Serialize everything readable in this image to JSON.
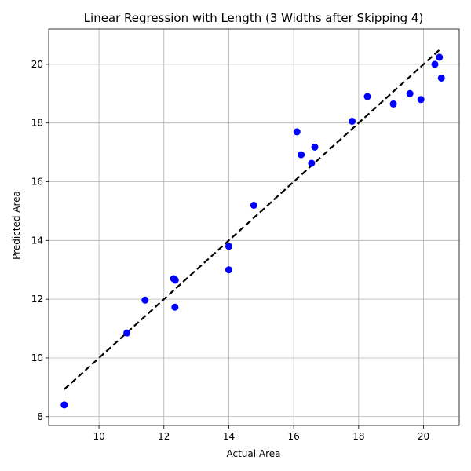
{
  "chart_data": {
    "type": "scatter",
    "title": "Linear Regression with Length (3 Widths after Skipping 4)",
    "xlabel": "Actual Area",
    "ylabel": "Predicted Area",
    "xlim": [
      8.45,
      21.1
    ],
    "ylim": [
      7.7,
      21.2
    ],
    "xticks": [
      10,
      12,
      14,
      16,
      18,
      20
    ],
    "yticks": [
      8,
      10,
      12,
      14,
      16,
      18,
      20
    ],
    "grid": true,
    "point_color": "#0000ff",
    "line_color": "#000000",
    "points": [
      {
        "x": 8.93,
        "y": 8.4
      },
      {
        "x": 10.86,
        "y": 10.85
      },
      {
        "x": 11.42,
        "y": 11.97
      },
      {
        "x": 12.3,
        "y": 12.7
      },
      {
        "x": 12.35,
        "y": 12.65
      },
      {
        "x": 12.34,
        "y": 11.73
      },
      {
        "x": 14.0,
        "y": 13.8
      },
      {
        "x": 14.0,
        "y": 13.0
      },
      {
        "x": 14.77,
        "y": 15.2
      },
      {
        "x": 16.1,
        "y": 17.7
      },
      {
        "x": 16.23,
        "y": 16.92
      },
      {
        "x": 16.55,
        "y": 16.63
      },
      {
        "x": 16.65,
        "y": 17.18
      },
      {
        "x": 17.8,
        "y": 18.06
      },
      {
        "x": 18.27,
        "y": 18.9
      },
      {
        "x": 19.07,
        "y": 18.65
      },
      {
        "x": 19.58,
        "y": 19.0
      },
      {
        "x": 19.92,
        "y": 18.8
      },
      {
        "x": 20.35,
        "y": 20.0
      },
      {
        "x": 20.49,
        "y": 20.24
      },
      {
        "x": 20.55,
        "y": 19.53
      }
    ],
    "reference_line": {
      "x": [
        8.93,
        20.49
      ],
      "y": [
        8.93,
        20.49
      ],
      "style": "dashed"
    }
  }
}
